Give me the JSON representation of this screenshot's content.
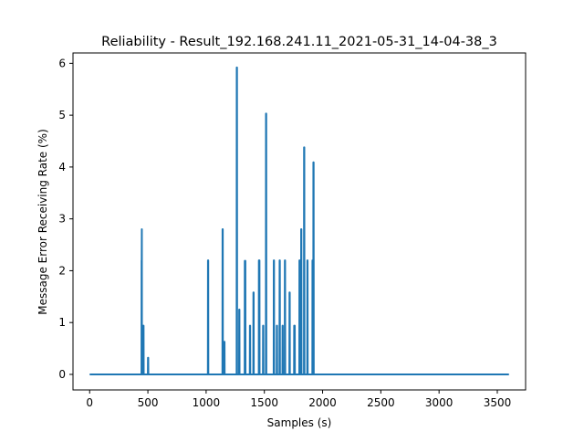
{
  "chart_data": {
    "type": "line",
    "title": "Reliability - Result_192.168.241.11_2021-05-31_14-04-38_3",
    "xlabel": "Samples (s)",
    "ylabel": "Message Error Receiving Rate (%)",
    "xlim": [
      -143,
      3743
    ],
    "ylim": [
      -0.3,
      6.2
    ],
    "xticks": [
      0,
      500,
      1000,
      1500,
      2000,
      2500,
      3000,
      3500
    ],
    "yticks": [
      0,
      1,
      2,
      3,
      4,
      5,
      6
    ],
    "grid": false,
    "legend": "none",
    "line_color": "#1f77b4",
    "series": [
      {
        "x": [
          0,
          445,
          446,
          447,
          448,
          449,
          452,
          453,
          454,
          455,
          456,
          457,
          458,
          460,
          461,
          462,
          463,
          464,
          500,
          501,
          502,
          503,
          504,
          1015,
          1016,
          1017,
          1018,
          1019,
          1140,
          1141,
          1142,
          1143,
          1144,
          1155,
          1156,
          1157,
          1158,
          1159,
          1262,
          1263,
          1264,
          1265,
          1266,
          1283,
          1284,
          1285,
          1286,
          1287,
          1331,
          1332,
          1333,
          1334,
          1335,
          1336,
          1337,
          1338,
          1375,
          1376,
          1377,
          1378,
          1379,
          1405,
          1406,
          1407,
          1408,
          1409,
          1452,
          1453,
          1454,
          1455,
          1456,
          1457,
          1458,
          1459,
          1488,
          1489,
          1490,
          1491,
          1492,
          1513,
          1514,
          1515,
          1516,
          1517,
          1580,
          1581,
          1582,
          1583,
          1584,
          1606,
          1607,
          1608,
          1609,
          1610,
          1630,
          1631,
          1632,
          1633,
          1634,
          1655,
          1656,
          1657,
          1658,
          1659,
          1675,
          1676,
          1677,
          1678,
          1679,
          1715,
          1716,
          1717,
          1718,
          1719,
          1755,
          1756,
          1757,
          1758,
          1759,
          1760,
          1761,
          1762,
          1800,
          1801,
          1802,
          1803,
          1804,
          1815,
          1816,
          1817,
          1818,
          1819,
          1840,
          1841,
          1842,
          1843,
          1844,
          1868,
          1869,
          1870,
          1871,
          1872,
          1912,
          1913,
          1914,
          1915,
          1916,
          1920,
          1921,
          1922,
          1923,
          1924,
          3600
        ],
        "y": [
          0,
          0,
          2.2,
          2.2,
          2.8,
          0,
          0,
          0.94,
          0.94,
          0.94,
          0,
          0,
          0,
          0,
          0.94,
          0.94,
          0.94,
          0,
          0,
          0.32,
          0.32,
          0.32,
          0,
          0,
          2.2,
          2.2,
          2.2,
          0,
          0,
          2.8,
          2.8,
          2.8,
          0,
          0,
          0.63,
          0.63,
          0.63,
          0,
          0,
          5.92,
          5.92,
          5.92,
          0,
          0,
          1.25,
          1.25,
          1.25,
          0,
          0,
          2.19,
          2.19,
          2.19,
          2.19,
          2.19,
          2.19,
          0,
          0,
          0.94,
          0.94,
          0.94,
          0,
          0,
          1.58,
          1.58,
          1.58,
          0,
          0,
          2.2,
          2.2,
          2.2,
          2.2,
          2.2,
          2.2,
          0,
          0,
          0.94,
          0.94,
          0.94,
          0,
          0,
          5.03,
          5.03,
          5.03,
          0,
          0,
          2.2,
          2.2,
          2.2,
          0,
          0,
          0.94,
          0.94,
          0.94,
          0,
          0,
          2.2,
          2.2,
          2.2,
          0,
          0,
          0.94,
          0.94,
          0.94,
          0,
          0,
          2.2,
          2.2,
          2.2,
          0,
          0,
          1.58,
          1.58,
          1.58,
          0,
          0,
          0.94,
          0.94,
          0.94,
          0.94,
          0.94,
          0.94,
          0,
          0,
          2.2,
          2.2,
          2.2,
          0,
          0,
          2.8,
          2.8,
          2.8,
          0,
          0,
          4.38,
          4.38,
          4.38,
          0,
          0,
          2.2,
          2.2,
          2.2,
          0,
          0,
          2.2,
          2.2,
          2.2,
          0,
          0,
          4.09,
          4.09,
          4.09,
          0,
          0
        ]
      }
    ]
  }
}
